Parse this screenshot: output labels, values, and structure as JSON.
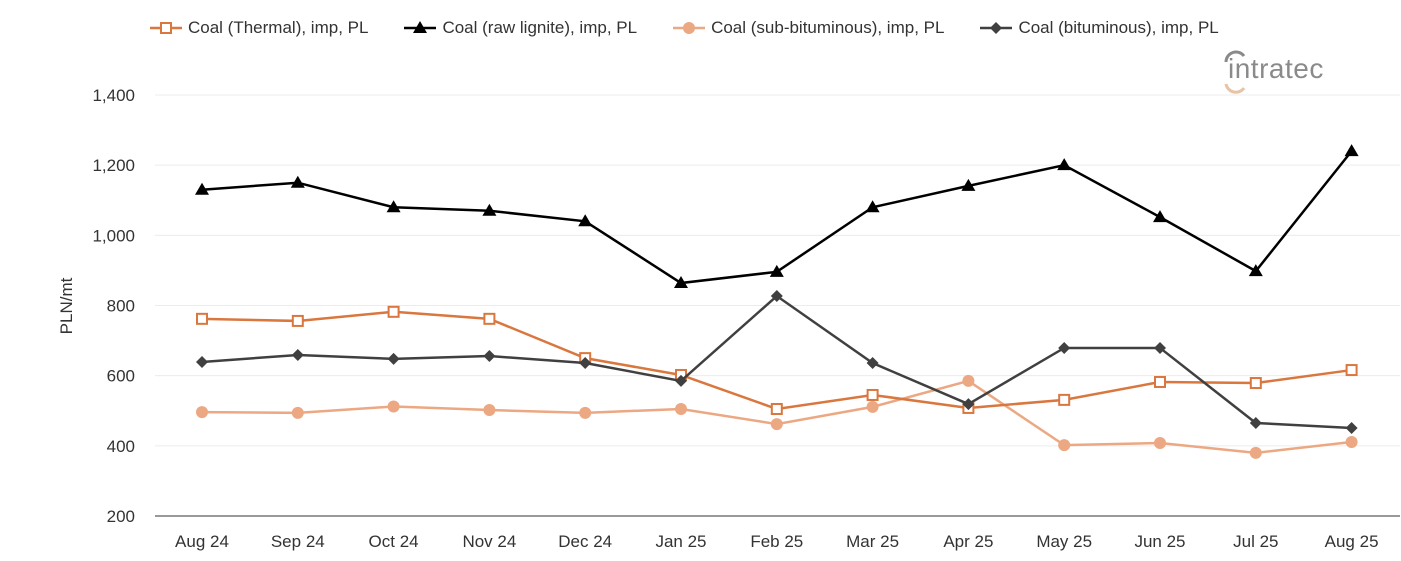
{
  "chart_data": {
    "type": "line",
    "ylabel": "PLN/mt",
    "ylim": [
      200,
      1400
    ],
    "yticks": [
      "200",
      "400",
      "600",
      "800",
      "1,000",
      "1,200",
      "1,400"
    ],
    "ytick_values": [
      200,
      400,
      600,
      800,
      1000,
      1200,
      1400
    ],
    "grid": true,
    "legend_placement": "top",
    "categories": [
      "Aug 24",
      "Sep 24",
      "Oct 24",
      "Nov 24",
      "Dec 24",
      "Jan 25",
      "Feb 25",
      "Mar 25",
      "Apr 25",
      "May 25",
      "Jun 25",
      "Jul 25",
      "Aug 25"
    ],
    "series": [
      {
        "name": "Coal (Thermal), imp, PL",
        "color": "#d9773f",
        "marker": "hollow-square",
        "values": [
          762,
          756,
          782,
          762,
          650,
          602,
          505,
          545,
          508,
          531,
          582,
          579,
          616
        ]
      },
      {
        "name": "Coal (raw lignite), imp, PL",
        "color": "#000000",
        "marker": "triangle",
        "values": [
          1130,
          1150,
          1080,
          1070,
          1040,
          864,
          896,
          1080,
          1141,
          1200,
          1052,
          898,
          1240
        ]
      },
      {
        "name": "Coal (sub-bituminous), imp, PL",
        "color": "#eba882",
        "marker": "circle",
        "values": [
          496,
          494,
          512,
          502,
          494,
          505,
          462,
          511,
          585,
          402,
          408,
          380,
          411
        ]
      },
      {
        "name": "Coal (bituminous), imp, PL",
        "color": "#404040",
        "marker": "diamond",
        "values": [
          639,
          659,
          648,
          656,
          636,
          585,
          827,
          636,
          519,
          679,
          679,
          465,
          451
        ]
      }
    ]
  },
  "logo": {
    "text": "intratec"
  }
}
